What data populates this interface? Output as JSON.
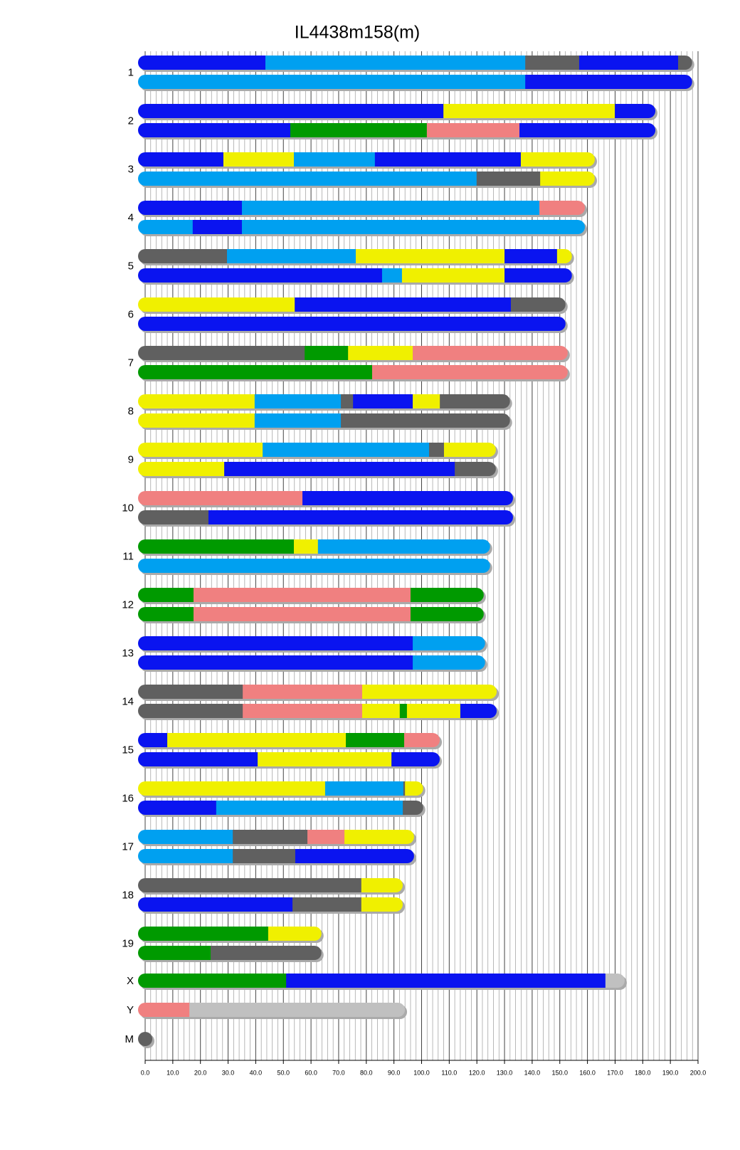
{
  "chart_data": {
    "type": "chromosome-painting",
    "title": "IL4438m158(m)",
    "xlim": [
      0,
      200
    ],
    "xticks": [
      {
        "value": 0,
        "label": "0.0"
      },
      {
        "value": 10,
        "label": "10.0"
      },
      {
        "value": 20,
        "label": "20.0"
      },
      {
        "value": 30,
        "label": "30.0"
      },
      {
        "value": 40,
        "label": "40.0"
      },
      {
        "value": 50,
        "label": "50.0"
      },
      {
        "value": 60,
        "label": "60.0"
      },
      {
        "value": 70,
        "label": "70.0"
      },
      {
        "value": 80,
        "label": "80.0"
      },
      {
        "value": 90,
        "label": "90.0"
      },
      {
        "value": 100,
        "label": "100.0"
      },
      {
        "value": 110,
        "label": "110.0"
      },
      {
        "value": 120,
        "label": "120.0"
      },
      {
        "value": 130,
        "label": "130.0"
      },
      {
        "value": 140,
        "label": "140.0"
      },
      {
        "value": 150,
        "label": "150.0"
      },
      {
        "value": 160,
        "label": "160.0"
      },
      {
        "value": 170,
        "label": "170.0"
      },
      {
        "value": 180,
        "label": "180.0"
      },
      {
        "value": 190,
        "label": "190.0"
      },
      {
        "value": 200,
        "label": "200.0"
      }
    ],
    "grid": true,
    "chromosomes": [
      {
        "label": "1",
        "haplotypes": [
          {
            "ends": [
              43.5,
              137.5,
              157.0,
              192.8,
              195.3
            ],
            "colors": [
              "#0a14f0",
              "#00a0f0",
              "#606060",
              "#0a14f0",
              "#606060"
            ]
          },
          {
            "ends": [
              137.5,
              195.3
            ],
            "colors": [
              "#00a0f0",
              "#0a14f0"
            ]
          }
        ]
      },
      {
        "label": "2",
        "haplotypes": [
          {
            "ends": [
              107.9,
              169.9,
              182.0
            ],
            "colors": [
              "#0a14f0",
              "#f0f000",
              "#0a14f0"
            ]
          },
          {
            "ends": [
              52.5,
              101.9,
              135.4,
              182.0
            ],
            "colors": [
              "#0a14f0",
              "#009a00",
              "#f08080",
              "#0a14f0"
            ]
          }
        ]
      },
      {
        "label": "3",
        "haplotypes": [
          {
            "ends": [
              28.3,
              53.8,
              83.1,
              135.9,
              160.1
            ],
            "colors": [
              "#0a14f0",
              "#f0f000",
              "#00a0f0",
              "#0a14f0",
              "#f0f000"
            ]
          },
          {
            "ends": [
              119.9,
              142.9,
              160.1
            ],
            "colors": [
              "#00a0f0",
              "#606060",
              "#f0f000"
            ]
          }
        ]
      },
      {
        "label": "4",
        "haplotypes": [
          {
            "ends": [
              35.0,
              142.6,
              156.5
            ],
            "colors": [
              "#0a14f0",
              "#00a0f0",
              "#f08080"
            ]
          },
          {
            "ends": [
              17.2,
              35.0,
              156.5
            ],
            "colors": [
              "#00a0f0",
              "#0a14f0",
              "#00a0f0"
            ]
          }
        ]
      },
      {
        "label": "5",
        "haplotypes": [
          {
            "ends": [
              29.6,
              76.2,
              130.0,
              149.0,
              151.8
            ],
            "colors": [
              "#606060",
              "#00a0f0",
              "#f0f000",
              "#0a14f0",
              "#f0f000"
            ]
          },
          {
            "ends": [
              85.7,
              92.9,
              130.0,
              151.8
            ],
            "colors": [
              "#0a14f0",
              "#00a0f0",
              "#f0f000",
              "#0a14f0"
            ]
          }
        ]
      },
      {
        "label": "6",
        "haplotypes": [
          {
            "ends": [
              54.1,
              132.3,
              149.5
            ],
            "colors": [
              "#f0f000",
              "#0a14f0",
              "#606060"
            ]
          },
          {
            "ends": [
              149.5
            ],
            "colors": [
              "#0a14f0"
            ]
          }
        ]
      },
      {
        "label": "7",
        "haplotypes": [
          {
            "ends": [
              57.7,
              73.4,
              96.8,
              150.3
            ],
            "colors": [
              "#606060",
              "#009a00",
              "#f0f000",
              "#f08080"
            ]
          },
          {
            "ends": [
              82.1,
              150.3
            ],
            "colors": [
              "#009a00",
              "#f08080"
            ]
          }
        ]
      },
      {
        "label": "8",
        "haplotypes": [
          {
            "ends": [
              39.6,
              70.8,
              75.2,
              96.8,
              106.6,
              129.4
            ],
            "colors": [
              "#f0f000",
              "#00a0f0",
              "#606060",
              "#0a14f0",
              "#f0f000",
              "#606060"
            ]
          },
          {
            "ends": [
              39.6,
              70.8,
              129.4
            ],
            "colors": [
              "#f0f000",
              "#00a0f0",
              "#606060"
            ]
          }
        ]
      },
      {
        "label": "9",
        "haplotypes": [
          {
            "ends": [
              42.5,
              102.7,
              108.1,
              124.3
            ],
            "colors": [
              "#f0f000",
              "#00a0f0",
              "#606060",
              "#f0f000"
            ]
          },
          {
            "ends": [
              28.6,
              112.0,
              124.3
            ],
            "colors": [
              "#f0f000",
              "#0a14f0",
              "#606060"
            ]
          }
        ]
      },
      {
        "label": "10",
        "haplotypes": [
          {
            "ends": [
              56.9,
              130.5
            ],
            "colors": [
              "#f08080",
              "#0a14f0"
            ]
          },
          {
            "ends": [
              22.9,
              130.5
            ],
            "colors": [
              "#606060",
              "#0a14f0"
            ]
          }
        ]
      },
      {
        "label": "11",
        "haplotypes": [
          {
            "ends": [
              53.8,
              62.5,
              122.2
            ],
            "colors": [
              "#009a00",
              "#f0f000",
              "#00a0f0"
            ]
          },
          {
            "ends": [
              122.2
            ],
            "colors": [
              "#00a0f0"
            ]
          }
        ]
      },
      {
        "label": "12",
        "haplotypes": [
          {
            "ends": [
              17.5,
              96.0,
              119.9
            ],
            "colors": [
              "#009a00",
              "#f08080",
              "#009a00"
            ]
          },
          {
            "ends": [
              17.5,
              96.0,
              119.9
            ],
            "colors": [
              "#009a00",
              "#f08080",
              "#009a00"
            ]
          }
        ]
      },
      {
        "label": "13",
        "haplotypes": [
          {
            "ends": [
              96.8,
              120.4
            ],
            "colors": [
              "#0a14f0",
              "#00a0f0"
            ]
          },
          {
            "ends": [
              96.8,
              120.4
            ],
            "colors": [
              "#0a14f0",
              "#00a0f0"
            ]
          }
        ]
      },
      {
        "label": "14",
        "haplotypes": [
          {
            "ends": [
              35.3,
              78.5,
              124.6
            ],
            "colors": [
              "#606060",
              "#f08080",
              "#f0f000"
            ]
          },
          {
            "ends": [
              35.3,
              78.5,
              92.1,
              94.7,
              114.0,
              124.6
            ],
            "colors": [
              "#606060",
              "#f08080",
              "#f0f000",
              "#009a00",
              "#f0f000",
              "#0a14f0"
            ]
          }
        ]
      },
      {
        "label": "15",
        "haplotypes": [
          {
            "ends": [
              8.0,
              72.6,
              93.7,
              104.0
            ],
            "colors": [
              "#0a14f0",
              "#f0f000",
              "#009a00",
              "#f08080"
            ]
          },
          {
            "ends": [
              40.7,
              89.1,
              104.0
            ],
            "colors": [
              "#0a14f0",
              "#f0f000",
              "#0a14f0"
            ]
          }
        ]
      },
      {
        "label": "16",
        "haplotypes": [
          {
            "ends": [
              65.1,
              93.4,
              94.0,
              98.0
            ],
            "colors": [
              "#f0f000",
              "#00a0f0",
              "#606060",
              "#f0f000"
            ]
          },
          {
            "ends": [
              25.7,
              93.2,
              98.0
            ],
            "colors": [
              "#0a14f0",
              "#00a0f0",
              "#606060"
            ]
          }
        ]
      },
      {
        "label": "17",
        "haplotypes": [
          {
            "ends": [
              31.7,
              58.7,
              72.1,
              94.7
            ],
            "colors": [
              "#00a0f0",
              "#606060",
              "#f08080",
              "#f0f000"
            ]
          },
          {
            "ends": [
              31.7,
              54.3,
              94.7
            ],
            "colors": [
              "#00a0f0",
              "#606060",
              "#0a14f0"
            ]
          }
        ]
      },
      {
        "label": "18",
        "haplotypes": [
          {
            "ends": [
              78.2,
              90.6
            ],
            "colors": [
              "#606060",
              "#f0f000"
            ]
          },
          {
            "ends": [
              53.3,
              78.2,
              90.6
            ],
            "colors": [
              "#0a14f0",
              "#606060",
              "#f0f000"
            ]
          }
        ]
      },
      {
        "label": "19",
        "haplotypes": [
          {
            "ends": [
              44.5,
              61.2
            ],
            "colors": [
              "#009a00",
              "#f0f000"
            ]
          },
          {
            "ends": [
              23.7,
              61.2
            ],
            "colors": [
              "#009a00",
              "#606060"
            ]
          }
        ]
      },
      {
        "label": "X",
        "haplotypes": [
          {
            "ends": [
              51.0,
              166.5,
              170.9
            ],
            "colors": [
              "#009a00",
              "#0a14f0",
              "#c0c0c0"
            ]
          }
        ]
      },
      {
        "label": "Y",
        "haplotypes": [
          {
            "ends": [
              16.0,
              91.4
            ],
            "colors": [
              "#f08080",
              "#c0c0c0"
            ]
          }
        ]
      },
      {
        "label": "M",
        "haplotypes": [
          {
            "ends": [
              0.016
            ],
            "colors": [
              "#606060"
            ]
          }
        ]
      }
    ]
  }
}
